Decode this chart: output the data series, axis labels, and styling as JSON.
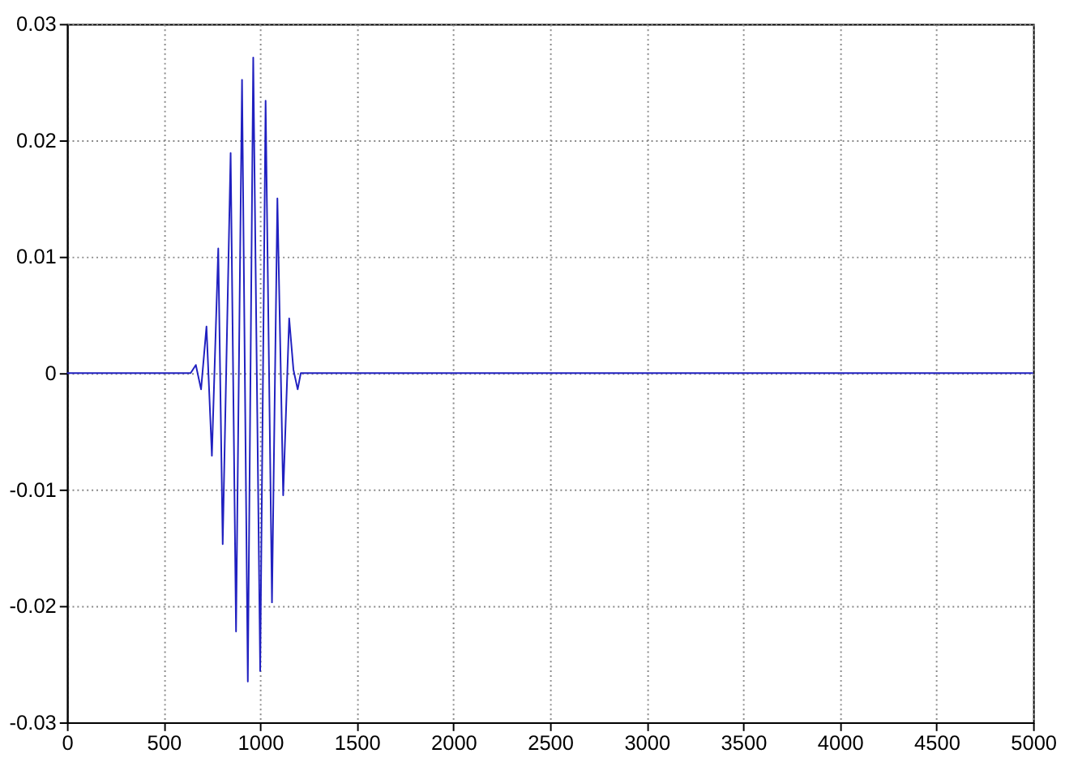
{
  "chart_data": {
    "type": "line",
    "x": [
      0,
      640,
      667,
      694,
      722,
      750,
      783,
      806,
      847,
      875,
      906,
      936,
      964,
      1000,
      1028,
      1061,
      1089,
      1119,
      1150,
      1172,
      1194,
      1210,
      5000
    ],
    "series": [
      {
        "color": "#2020c0",
        "values": [
          0,
          0,
          0.0007,
          -0.0014,
          0.004,
          -0.0071,
          0.0107,
          -0.0147,
          0.0189,
          -0.0222,
          0.0252,
          -0.0265,
          0.0271,
          -0.0256,
          0.0234,
          -0.0197,
          0.015,
          -0.0105,
          0.0047,
          0.0003,
          -0.0014,
          0,
          0
        ]
      }
    ],
    "xlim": [
      0,
      5000
    ],
    "xticks": [
      0,
      500,
      1000,
      1500,
      2000,
      2500,
      3000,
      3500,
      4000,
      4500,
      5000
    ],
    "ylim": [
      -0.03,
      0.03
    ],
    "yticks": [
      -0.03,
      -0.02,
      -0.01,
      0,
      0.01,
      0.02,
      0.03
    ],
    "grid": true,
    "legend": false,
    "marker": "none",
    "line_style": "solid"
  }
}
